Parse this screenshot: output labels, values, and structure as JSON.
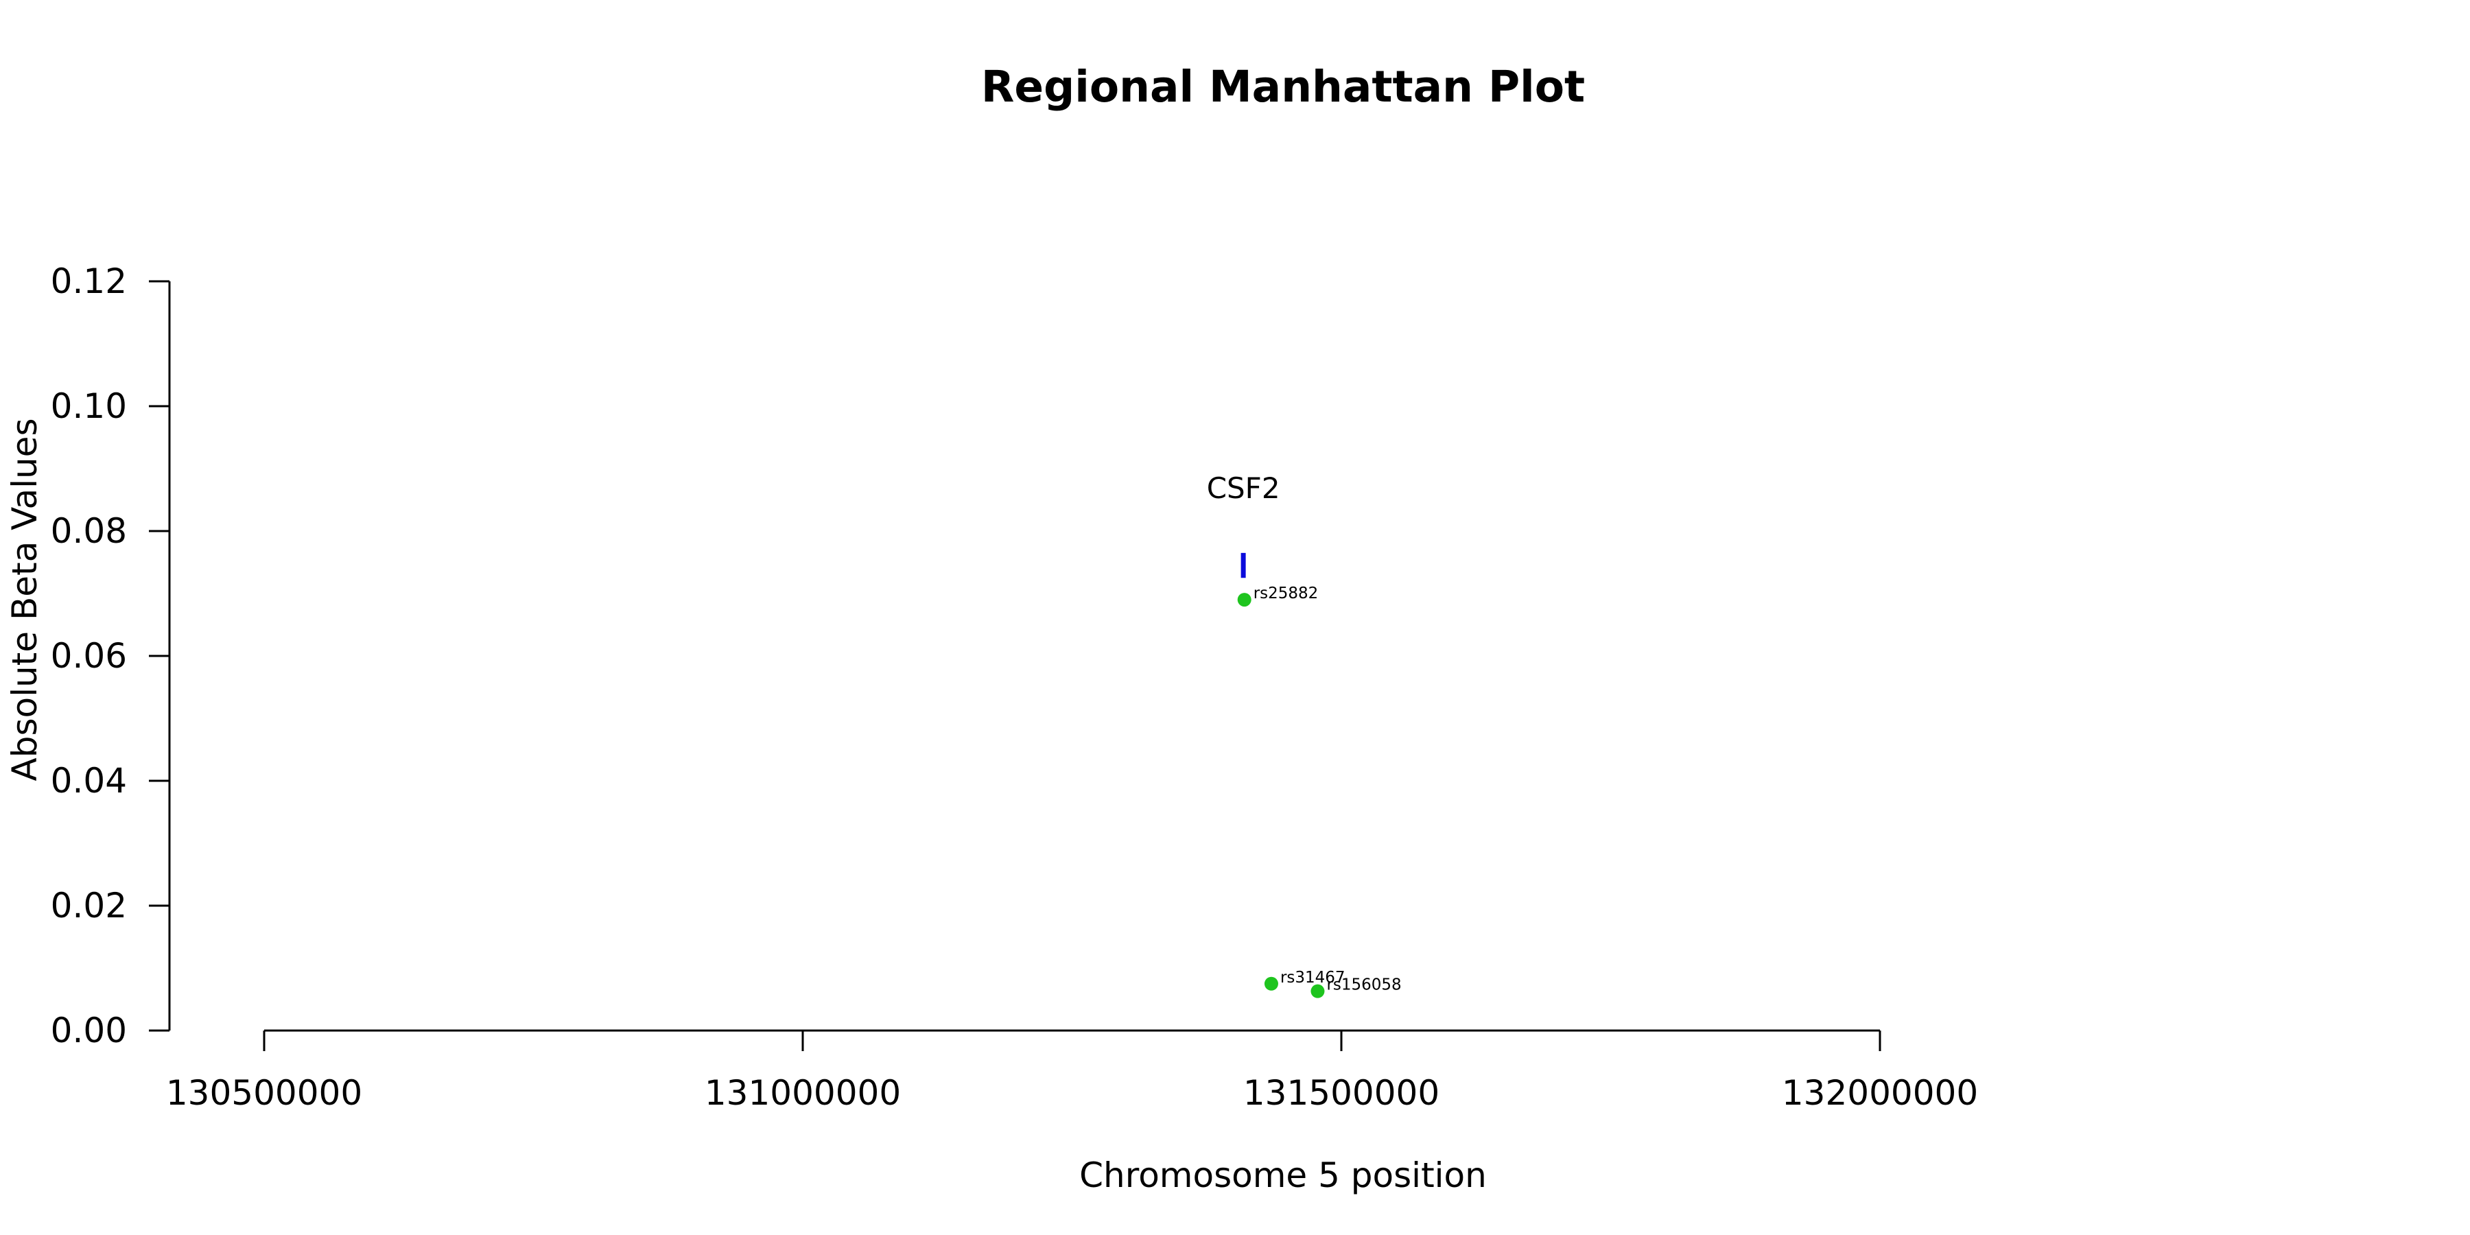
{
  "chart_data": {
    "type": "scatter",
    "title": "Regional Manhattan Plot",
    "xlabel": "Chromosome 5 position",
    "ylabel": "Absolute Beta Values",
    "xlim": [
      130500000,
      132000000
    ],
    "ylim": [
      0,
      0.12
    ],
    "x_ticks": [
      "130500000",
      "131000000",
      "131500000",
      "132000000"
    ],
    "y_ticks": [
      "0.00",
      "0.02",
      "0.04",
      "0.06",
      "0.08",
      "0.10",
      "0.12"
    ],
    "grid": false,
    "points": [
      {
        "label": "rs25882",
        "x": 131410000,
        "y": 0.069
      },
      {
        "label": "rs31467",
        "x": 131435000,
        "y": 0.0075
      },
      {
        "label": "rs156058",
        "x": 131478000,
        "y": 0.0063
      }
    ],
    "genes": [
      {
        "name": "CSF2",
        "x": 131409000,
        "y_start": 0.0725,
        "y_end": 0.0765
      }
    ],
    "colors": {
      "points": "#1ec41e",
      "gene": "#0b0bdc",
      "axis": "#000000"
    }
  }
}
